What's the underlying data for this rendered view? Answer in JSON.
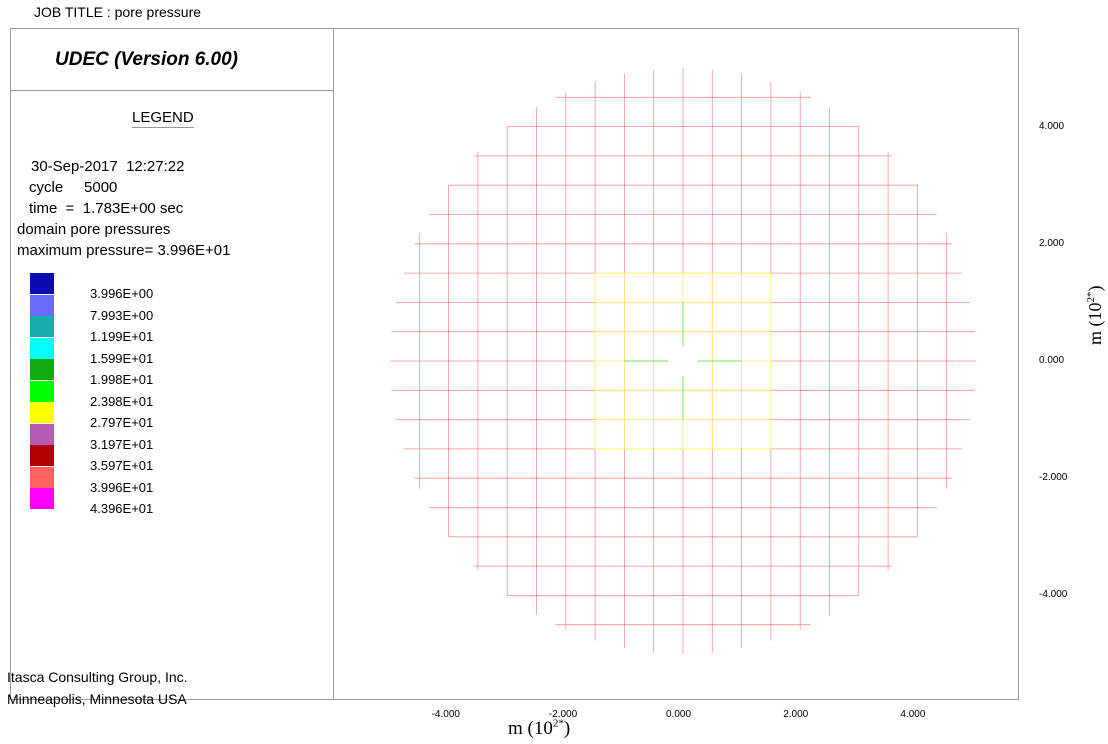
{
  "job_title": "JOB TITLE :  pore pressure",
  "version": "UDEC (Version 6.00)",
  "legend": {
    "title": "LEGEND",
    "date_time": "30-Sep-2017  12:27:22",
    "cycle": "cycle     5000",
    "time": "time  =  1.783E+00 sec",
    "domain": "domain pore pressures",
    "max_pressure": "maximum pressure= 3.996E+01",
    "items": [
      {
        "label": "3.996E+00",
        "color": "#0b0bb3"
      },
      {
        "label": "7.993E+00",
        "color": "#6a6aff"
      },
      {
        "label": "1.199E+01",
        "color": "#1aacac"
      },
      {
        "label": "1.599E+01",
        "color": "#00ffff"
      },
      {
        "label": "1.998E+01",
        "color": "#12a912"
      },
      {
        "label": "2.398E+01",
        "color": "#00ff00"
      },
      {
        "label": "2.797E+01",
        "color": "#ffff00"
      },
      {
        "label": "3.197E+01",
        "color": "#b55cb5"
      },
      {
        "label": "3.597E+01",
        "color": "#b30000"
      },
      {
        "label": "3.996E+01",
        "color": "#ff6060"
      },
      {
        "label": "4.396E+01",
        "color": "#ff00ff"
      }
    ]
  },
  "credits": {
    "line1": "Itasca Consulting Group, Inc.",
    "line2": "Minneapolis, Minnesota  USA"
  },
  "chart_data": {
    "type": "contour-mesh",
    "xlabel": "m (10^2*)",
    "ylabel": "m (10^2*)",
    "x_ticks": [
      "-4.000",
      "-2.000",
      "0.000",
      "2.000",
      "4.000"
    ],
    "y_ticks": [
      "4.000",
      "2.000",
      "0.000",
      "-2.000",
      "-4.000"
    ],
    "x_tick_values": [
      -4,
      -2,
      0,
      2,
      4
    ],
    "y_tick_values": [
      4,
      2,
      0,
      -2,
      -4
    ],
    "outer_radius": 5.0,
    "inner_hole_radius": 0.25,
    "grid_spacing": 0.5,
    "core_half_width": 1.5,
    "colors": {
      "mesh": "#ff6a6a",
      "core": "#ffff80",
      "center": "#40e040",
      "diag": "#d090d0"
    }
  }
}
